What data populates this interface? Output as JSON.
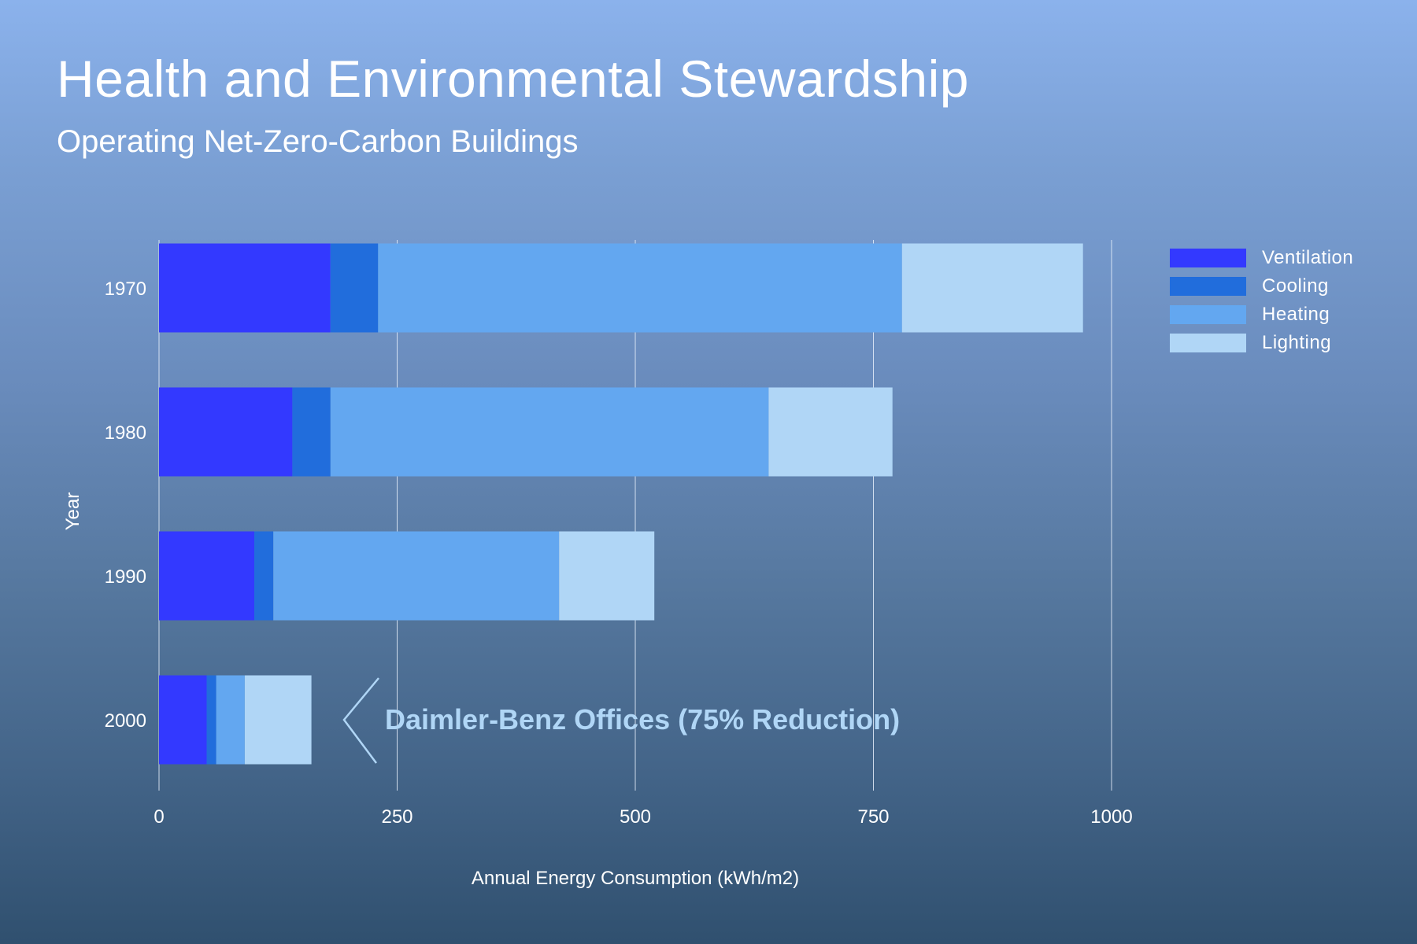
{
  "header": {
    "title": "Health and Environmental Stewardship",
    "subtitle": "Operating Net-Zero-Carbon Buildings"
  },
  "chart_data": {
    "type": "bar",
    "orientation": "horizontal",
    "stacked": true,
    "title": "Health and Environmental Stewardship",
    "subtitle": "Operating Net-Zero-Carbon Buildings",
    "xlabel": "Annual Energy Consumption (kWh/m2)",
    "ylabel": "Year",
    "xlim": [
      0,
      1000
    ],
    "xticks": [
      0,
      250,
      500,
      750,
      1000
    ],
    "grid": true,
    "legend_position": "right",
    "categories": [
      "1970",
      "1980",
      "1990",
      "2000"
    ],
    "series": [
      {
        "name": "Ventilation",
        "color": "#3339ff",
        "values": [
          180,
          140,
          100,
          50
        ]
      },
      {
        "name": "Cooling",
        "color": "#216ddc",
        "values": [
          50,
          40,
          20,
          10
        ]
      },
      {
        "name": "Heating",
        "color": "#63a7f0",
        "values": [
          550,
          460,
          300,
          30
        ]
      },
      {
        "name": "Lighting",
        "color": "#b0d6f6",
        "values": [
          190,
          130,
          100,
          70
        ]
      }
    ],
    "annotations": [
      {
        "category": "2000",
        "text": "Daimler-Benz Offices (75% Reduction)",
        "color": "#b0d6f6"
      }
    ]
  }
}
